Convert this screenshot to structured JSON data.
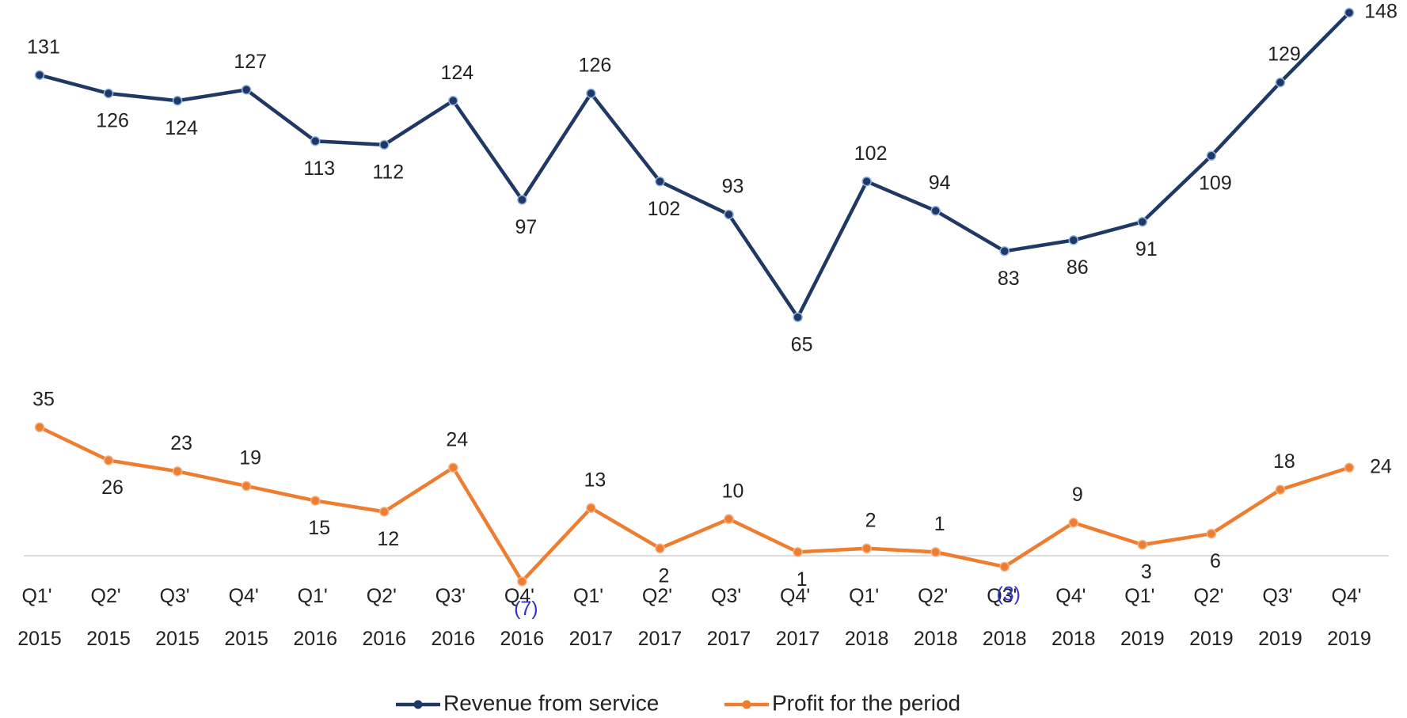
{
  "chart_data": {
    "type": "line",
    "categories": [
      "Q1' 2015",
      "Q2' 2015",
      "Q3' 2015",
      "Q4' 2015",
      "Q1' 2016",
      "Q2' 2016",
      "Q3' 2016",
      "Q4' 2016",
      "Q1' 2017",
      "Q2' 2017",
      "Q3' 2017",
      "Q4' 2017",
      "Q1' 2018",
      "Q2' 2018",
      "Q3' 2018",
      "Q4' 2018",
      "Q1' 2019",
      "Q2' 2019",
      "Q3' 2019",
      "Q4' 2019"
    ],
    "series": [
      {
        "name": "Revenue from service",
        "color": "#1f3864",
        "values": [
          131,
          126,
          124,
          127,
          113,
          112,
          124,
          97,
          126,
          102,
          93,
          65,
          102,
          94,
          83,
          86,
          91,
          109,
          129,
          148
        ]
      },
      {
        "name": "Profit for the period",
        "color": "#ed7d31",
        "values": [
          35,
          26,
          23,
          19,
          15,
          12,
          24,
          -7,
          13,
          2,
          10,
          1,
          2,
          1,
          -3,
          9,
          3,
          6,
          18,
          24
        ],
        "value_labels": [
          "35",
          "26",
          "23",
          "19",
          "15",
          "12",
          "24",
          "(7)",
          "13",
          "2",
          "10",
          "1",
          "2",
          "1",
          "(3)",
          "9",
          "3",
          "6",
          "18",
          "24"
        ]
      }
    ],
    "ylim": [
      -10,
      150
    ],
    "grid": false,
    "legend": "bottom"
  }
}
